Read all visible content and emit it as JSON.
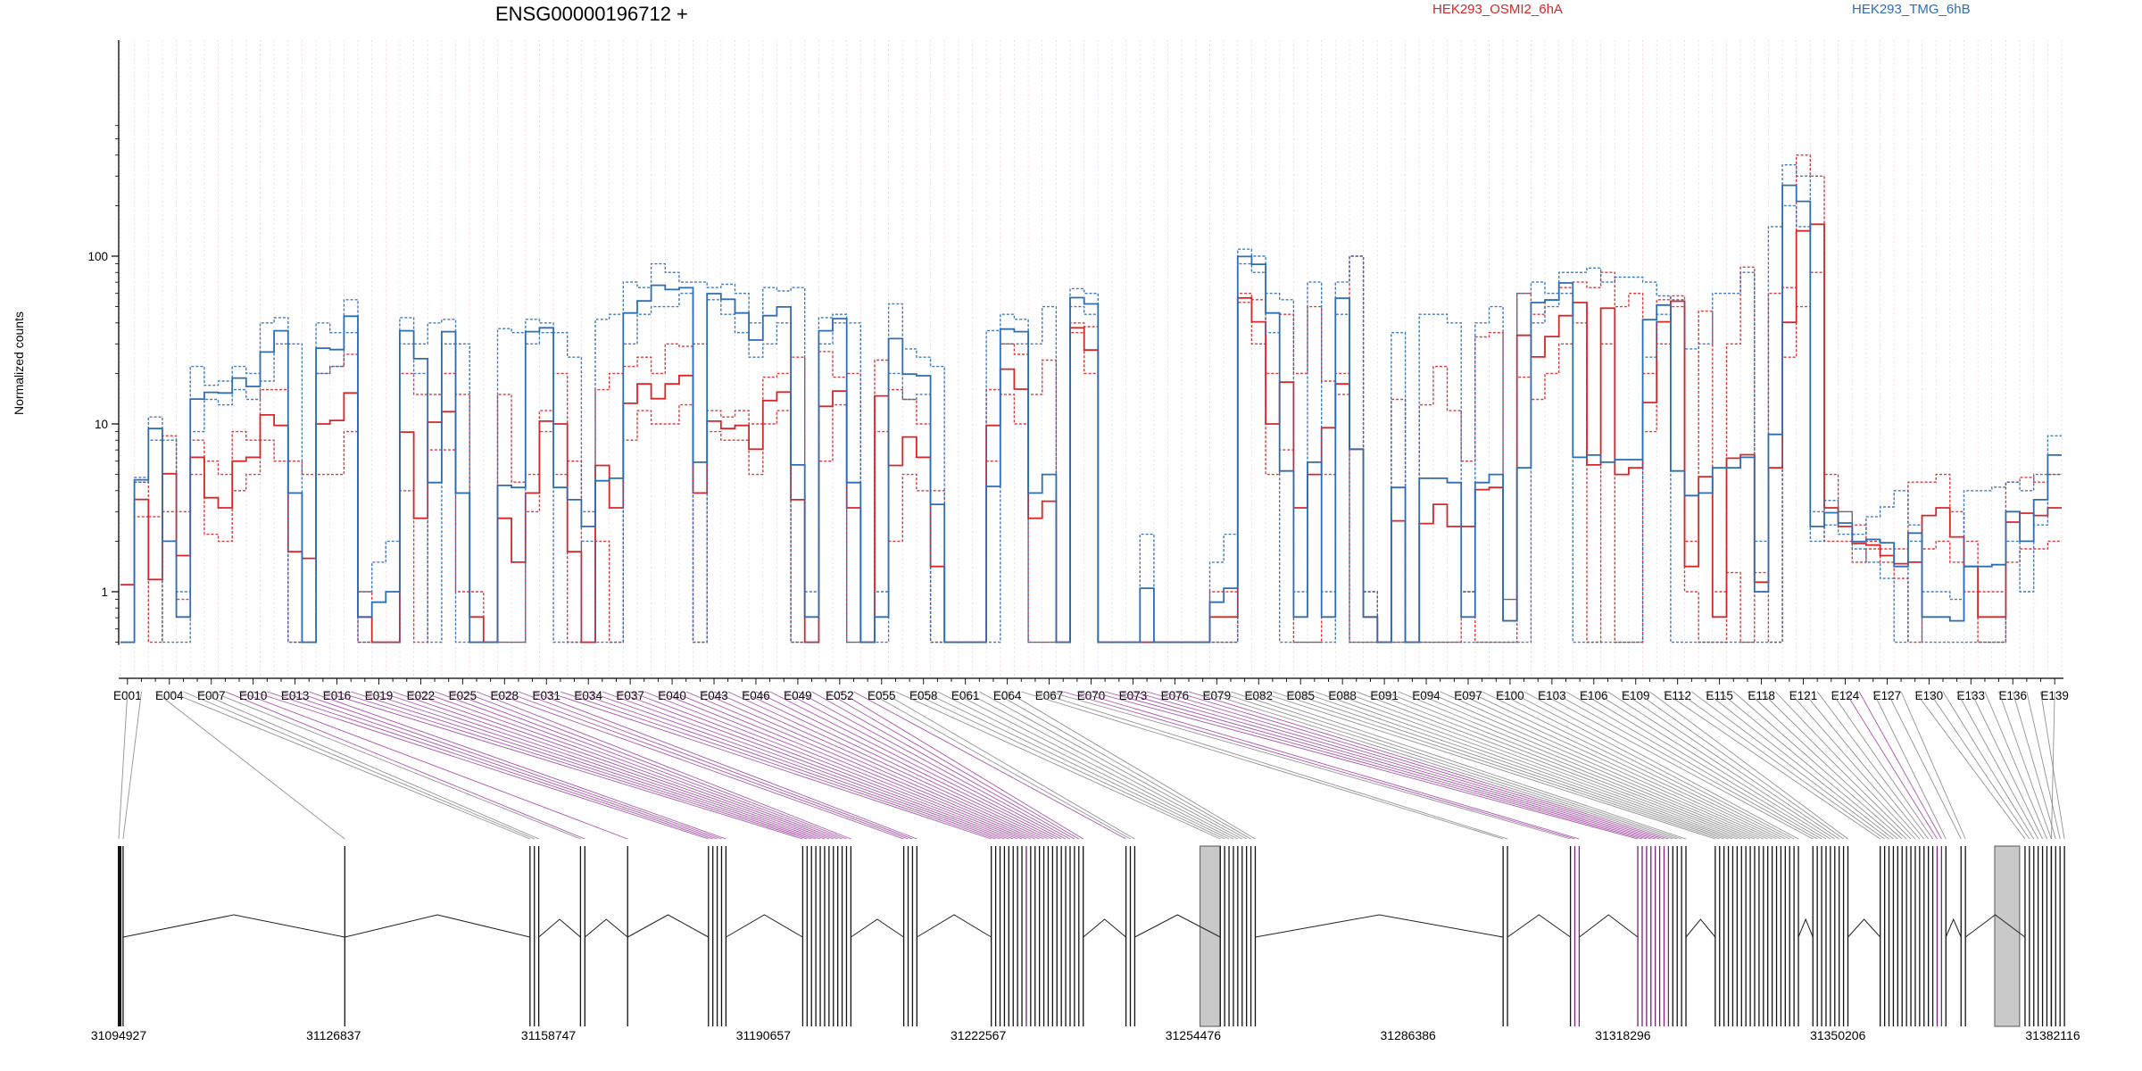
{
  "chart_data": {
    "type": "line",
    "title": "ENSG00000196712 +",
    "ylabel": "Normalized counts",
    "xlabel": "",
    "yscale": "log",
    "ylim": [
      0.5,
      600
    ],
    "grid": "vertical dotted lines at exon boundaries",
    "legend_placement": "top-right",
    "series": [
      {
        "name": "HEK293_OSMI2_6hA",
        "color": "#d62728"
      },
      {
        "name": "HEK293_TMG_6hB",
        "color": "#2d6db5"
      }
    ],
    "y_ticks": [
      {
        "value": 1,
        "label": "1"
      },
      {
        "value": 10,
        "label": "10"
      },
      {
        "value": 100,
        "label": "100"
      }
    ],
    "exon_ticks": [
      "E001",
      "E004",
      "E007",
      "E010",
      "E013",
      "E016",
      "E019",
      "E022",
      "E025",
      "E028",
      "E031",
      "E034",
      "E037",
      "E040",
      "E043",
      "E046",
      "E049",
      "E052",
      "E055",
      "E058",
      "E061",
      "E064",
      "E067",
      "E070",
      "E073",
      "E076",
      "E079",
      "E082",
      "E085",
      "E088",
      "E091",
      "E094",
      "E097",
      "E100",
      "E103",
      "E106",
      "E109",
      "E112",
      "E115",
      "E118",
      "E121",
      "E124",
      "E127",
      "E130",
      "E133",
      "E136",
      "E139"
    ],
    "exon_count": 139,
    "genomic_range": [
      31094927,
      31382116
    ],
    "genomic_ticks": [
      31094927,
      31126837,
      31158747,
      31190657,
      31222567,
      31254476,
      31286386,
      31318296,
      31350206,
      31382116
    ],
    "exon_values": {
      "HEK293_OSMI2_6hA": [
        [
          1.1,
          1.1
        ],
        [
          2.8,
          4.5
        ],
        [
          0.5,
          2.8
        ],
        [
          3,
          8.5
        ],
        [
          0.9,
          3
        ],
        [
          5,
          8
        ],
        [
          2.2,
          6
        ],
        [
          2,
          5
        ],
        [
          4,
          9
        ],
        [
          5,
          8
        ],
        [
          8,
          16
        ],
        [
          6,
          16
        ],
        [
          0.5,
          6
        ],
        [
          0.5,
          5
        ],
        [
          5,
          20
        ],
        [
          5,
          22
        ],
        [
          9,
          26
        ],
        [
          0.5,
          1
        ],
        [
          0.5,
          0.5
        ],
        [
          0.5,
          0.5
        ],
        [
          4,
          20
        ],
        [
          0.5,
          15
        ],
        [
          7,
          15
        ],
        [
          7,
          20
        ],
        [
          1,
          15
        ],
        [
          0.5,
          1
        ],
        [
          0.5,
          0.5
        ],
        [
          0.5,
          15
        ],
        [
          0.5,
          4.5
        ],
        [
          3,
          5
        ],
        [
          9,
          12
        ],
        [
          5,
          20
        ],
        [
          0.5,
          6
        ],
        [
          0.5,
          0.5
        ],
        [
          2,
          16
        ],
        [
          0.5,
          20
        ],
        [
          8,
          22
        ],
        [
          12,
          25
        ],
        [
          10,
          20
        ],
        [
          10,
          30
        ],
        [
          13,
          29
        ],
        [
          0.5,
          30
        ],
        [
          9,
          12
        ],
        [
          8,
          11
        ],
        [
          8,
          12
        ],
        [
          5,
          10
        ],
        [
          10,
          19
        ],
        [
          12,
          20
        ],
        [
          0.5,
          25
        ],
        [
          0.5,
          0.5
        ],
        [
          6,
          27
        ],
        [
          13,
          19
        ],
        [
          0.5,
          20
        ],
        [
          0.5,
          0.5
        ],
        [
          9,
          24
        ],
        [
          2,
          16
        ],
        [
          5,
          14
        ],
        [
          4,
          10
        ],
        [
          0.5,
          4
        ],
        [
          0.5,
          0.5
        ],
        [
          0.5,
          0.5
        ],
        [
          0.5,
          0.5
        ],
        [
          6,
          16
        ],
        [
          15,
          30
        ],
        [
          10,
          26
        ],
        [
          0.5,
          15
        ],
        [
          0.5,
          24
        ],
        [
          0.5,
          0.5
        ],
        [
          35,
          40
        ],
        [
          20,
          38
        ],
        [
          0.5,
          0.5
        ],
        [
          0.5,
          0.5
        ],
        [
          0.5,
          0.5
        ],
        [
          0.5,
          0.5
        ],
        [
          0.5,
          0.5
        ],
        [
          0.5,
          0.5
        ],
        [
          0.5,
          0.5
        ],
        [
          0.5,
          0.5
        ],
        [
          0.5,
          1
        ],
        [
          0.5,
          1
        ],
        [
          53,
          60
        ],
        [
          30,
          55
        ],
        [
          5,
          20
        ],
        [
          7,
          45
        ],
        [
          0.5,
          20
        ],
        [
          0.5,
          50
        ],
        [
          5,
          18
        ],
        [
          15,
          20
        ],
        [
          0.5,
          100
        ],
        [
          0.5,
          1
        ],
        [
          0.5,
          0.5
        ],
        [
          0.5,
          14
        ],
        [
          0.5,
          0.5
        ],
        [
          0.5,
          13
        ],
        [
          0.5,
          22
        ],
        [
          0.5,
          12
        ],
        [
          1,
          6
        ],
        [
          0.5,
          33
        ],
        [
          0.5,
          35
        ],
        [
          0.5,
          0.9
        ],
        [
          19,
          60
        ],
        [
          14,
          45
        ],
        [
          20,
          55
        ],
        [
          30,
          65
        ],
        [
          40,
          70
        ],
        [
          0.5,
          65
        ],
        [
          30,
          80
        ],
        [
          0.5,
          50
        ],
        [
          0.5,
          60
        ],
        [
          9,
          20
        ],
        [
          30,
          55
        ],
        [
          50,
          58
        ],
        [
          1,
          2
        ],
        [
          0.5,
          47
        ],
        [
          0.5,
          1
        ],
        [
          1.3,
          30
        ],
        [
          0.5,
          86
        ],
        [
          1,
          1.3
        ],
        [
          0.5,
          60
        ],
        [
          25,
          65
        ],
        [
          50,
          400
        ],
        [
          80,
          300
        ],
        [
          2,
          5
        ],
        [
          2,
          3
        ],
        [
          1.5,
          2.5
        ],
        [
          1.8,
          2
        ],
        [
          1.5,
          1.8
        ],
        [
          1.2,
          1.8
        ],
        [
          0.5,
          4.5
        ],
        [
          1.8,
          4.5
        ],
        [
          2,
          5
        ],
        [
          1.5,
          3
        ],
        [
          1,
          2
        ],
        [
          0.5,
          1
        ],
        [
          0.5,
          1
        ],
        [
          1.5,
          4.5
        ],
        [
          1.8,
          4.8
        ],
        [
          1.8,
          4.5
        ],
        [
          2,
          5
        ]
      ],
      "HEK293_TMG_6hB": [
        [
          0.5,
          0.5
        ],
        [
          4.5,
          4.8
        ],
        [
          8,
          11
        ],
        [
          0.5,
          8
        ],
        [
          0.5,
          1
        ],
        [
          9,
          22
        ],
        [
          14,
          17
        ],
        [
          13,
          18
        ],
        [
          16,
          22
        ],
        [
          14,
          20
        ],
        [
          18,
          40
        ],
        [
          30,
          43
        ],
        [
          0.5,
          30
        ],
        [
          0.5,
          0.5
        ],
        [
          20,
          40
        ],
        [
          22,
          35
        ],
        [
          35,
          55
        ],
        [
          0.5,
          1
        ],
        [
          0.5,
          1.5
        ],
        [
          0.5,
          2
        ],
        [
          30,
          43
        ],
        [
          20,
          30
        ],
        [
          0.5,
          40
        ],
        [
          30,
          42
        ],
        [
          0.5,
          30
        ],
        [
          0.5,
          0.5
        ],
        [
          0.5,
          0.5
        ],
        [
          0.5,
          37
        ],
        [
          0.5,
          35
        ],
        [
          30,
          42
        ],
        [
          35,
          40
        ],
        [
          0.5,
          35
        ],
        [
          0.5,
          25
        ],
        [
          2,
          3
        ],
        [
          0.5,
          42
        ],
        [
          0.5,
          45
        ],
        [
          30,
          70
        ],
        [
          45,
          65
        ],
        [
          50,
          90
        ],
        [
          50,
          80
        ],
        [
          60,
          70
        ],
        [
          0.5,
          70
        ],
        [
          55,
          65
        ],
        [
          45,
          68
        ],
        [
          35,
          60
        ],
        [
          25,
          40
        ],
        [
          30,
          65
        ],
        [
          40,
          62
        ],
        [
          0.5,
          65
        ],
        [
          0.5,
          1
        ],
        [
          30,
          43
        ],
        [
          40,
          45
        ],
        [
          0.5,
          40
        ],
        [
          0.5,
          0.5
        ],
        [
          0.5,
          1
        ],
        [
          20,
          52
        ],
        [
          14,
          28
        ],
        [
          15,
          25
        ],
        [
          0.5,
          22
        ],
        [
          0.5,
          0.5
        ],
        [
          0.5,
          0.5
        ],
        [
          0.5,
          0.5
        ],
        [
          0.5,
          36
        ],
        [
          30,
          45
        ],
        [
          30,
          42
        ],
        [
          0.5,
          30
        ],
        [
          0.5,
          50
        ],
        [
          0.5,
          0.5
        ],
        [
          50,
          64
        ],
        [
          45,
          60
        ],
        [
          0.5,
          0.5
        ],
        [
          0.5,
          0.5
        ],
        [
          0.5,
          0.5
        ],
        [
          0.5,
          2.2
        ],
        [
          0.5,
          0.5
        ],
        [
          0.5,
          0.5
        ],
        [
          0.5,
          0.5
        ],
        [
          0.5,
          0.5
        ],
        [
          0.5,
          1.5
        ],
        [
          0.5,
          2.2
        ],
        [
          90,
          110
        ],
        [
          80,
          100
        ],
        [
          35,
          60
        ],
        [
          0.5,
          55
        ],
        [
          0.5,
          1
        ],
        [
          0.5,
          70
        ],
        [
          0.5,
          1
        ],
        [
          45,
          70
        ],
        [
          0.5,
          100
        ],
        [
          0.5,
          1
        ],
        [
          0.5,
          0.5
        ],
        [
          0.5,
          35
        ],
        [
          0.5,
          0.5
        ],
        [
          0.5,
          45
        ],
        [
          0.5,
          45
        ],
        [
          0.5,
          40
        ],
        [
          0.5,
          1
        ],
        [
          0.5,
          40
        ],
        [
          0.5,
          50
        ],
        [
          0.5,
          0.9
        ],
        [
          0.5,
          60
        ],
        [
          40,
          70
        ],
        [
          50,
          60
        ],
        [
          60,
          80
        ],
        [
          0.5,
          80
        ],
        [
          0.5,
          85
        ],
        [
          0.5,
          70
        ],
        [
          0.5,
          75
        ],
        [
          0.5,
          75
        ],
        [
          25,
          70
        ],
        [
          45,
          58
        ],
        [
          0.5,
          55
        ],
        [
          0.5,
          28
        ],
        [
          0.5,
          30
        ],
        [
          0.5,
          60
        ],
        [
          0.5,
          60
        ],
        [
          0.5,
          80
        ],
        [
          0.5,
          2
        ],
        [
          0.5,
          150
        ],
        [
          200,
          350
        ],
        [
          150,
          300
        ],
        [
          2,
          3
        ],
        [
          2.5,
          3.5
        ],
        [
          2.2,
          3
        ],
        [
          1.8,
          2.2
        ],
        [
          1.5,
          2.8
        ],
        [
          1.2,
          3.2
        ],
        [
          0.5,
          4
        ],
        [
          2,
          2.5
        ],
        [
          0.5,
          1
        ],
        [
          0.5,
          1
        ],
        [
          0.5,
          0.9
        ],
        [
          0.5,
          4
        ],
        [
          0.5,
          4
        ],
        [
          0.5,
          4.2
        ],
        [
          2,
          4.5
        ],
        [
          1,
          4
        ],
        [
          2.5,
          5
        ],
        [
          5,
          8.5
        ]
      ]
    }
  }
}
